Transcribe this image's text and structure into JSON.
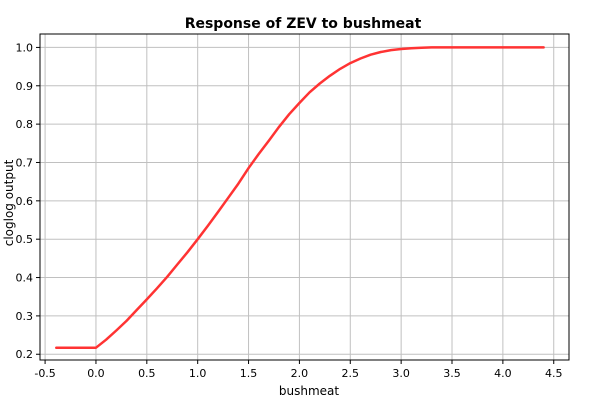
{
  "chart_data": {
    "type": "line",
    "title": "Response of ZEV to bushmeat",
    "xlabel": "bushmeat",
    "ylabel": "cloglog output",
    "xlim": [
      -0.55,
      4.65
    ],
    "ylim": [
      0.185,
      1.035
    ],
    "x_ticks": [
      "-0.5",
      "0.0",
      "0.5",
      "1.0",
      "1.5",
      "2.0",
      "2.5",
      "3.0",
      "3.5",
      "4.0",
      "4.5"
    ],
    "y_ticks": [
      "0.2",
      "0.3",
      "0.4",
      "0.5",
      "0.6",
      "0.7",
      "0.8",
      "0.9",
      "1.0"
    ],
    "grid": true,
    "series": [
      {
        "color": "#ff3333",
        "x": [
          -0.39,
          -0.2,
          0.0,
          0.1,
          0.2,
          0.3,
          0.4,
          0.5,
          0.6,
          0.7,
          0.8,
          0.9,
          1.0,
          1.1,
          1.2,
          1.3,
          1.4,
          1.5,
          1.6,
          1.7,
          1.8,
          1.9,
          2.0,
          2.1,
          2.2,
          2.3,
          2.4,
          2.5,
          2.6,
          2.7,
          2.8,
          2.9,
          3.0,
          3.1,
          3.2,
          3.3,
          3.5,
          3.8,
          4.1,
          4.4
        ],
        "y": [
          0.217,
          0.217,
          0.217,
          0.238,
          0.262,
          0.287,
          0.315,
          0.343,
          0.372,
          0.402,
          0.434,
          0.466,
          0.5,
          0.535,
          0.571,
          0.608,
          0.645,
          0.685,
          0.722,
          0.757,
          0.793,
          0.826,
          0.855,
          0.883,
          0.906,
          0.926,
          0.944,
          0.959,
          0.971,
          0.981,
          0.988,
          0.993,
          0.996,
          0.998,
          0.999,
          1.0,
          1.0,
          1.0,
          1.0,
          1.0
        ]
      }
    ]
  }
}
